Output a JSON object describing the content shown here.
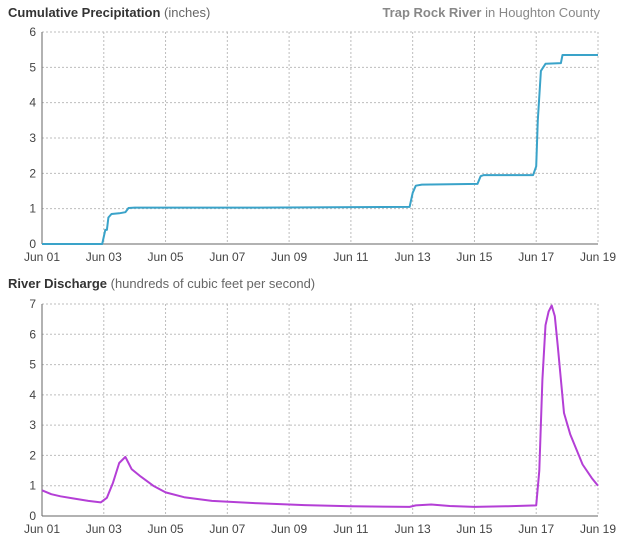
{
  "headers": {
    "top_title_bold": "Cumulative Precipitation",
    "top_title_unit": "(inches)",
    "location_bold": "Trap Rock River",
    "location_rest": "in Houghton County",
    "bottom_title_bold": "River Discharge",
    "bottom_title_unit": "(hundreds of cubic feet per second)"
  },
  "colors": {
    "precip": "#3aa3c9",
    "discharge": "#b43fd6"
  },
  "chart_data": [
    {
      "type": "line",
      "title": "Cumulative Precipitation (inches)",
      "xlabel": "",
      "ylabel": "",
      "x_ticks": [
        "Jun 01",
        "Jun 03",
        "Jun 05",
        "Jun 07",
        "Jun 09",
        "Jun 11",
        "Jun 13",
        "Jun 15",
        "Jun 17",
        "Jun 19"
      ],
      "y_ticks": [
        0,
        1,
        2,
        3,
        4,
        5,
        6
      ],
      "xlim": [
        1,
        19
      ],
      "ylim": [
        0,
        6
      ],
      "grid": true,
      "series": [
        {
          "color": "#3aa3c9",
          "x": [
            1.0,
            2.95,
            3.05,
            3.1,
            3.15,
            3.25,
            3.5,
            3.7,
            3.8,
            4.0,
            8.0,
            12.9,
            13.0,
            13.1,
            13.3,
            15.1,
            15.2,
            15.3,
            16.9,
            17.0,
            17.05,
            17.15,
            17.3,
            17.8,
            17.85,
            18.0,
            19.0
          ],
          "y": [
            0.0,
            0.0,
            0.4,
            0.4,
            0.75,
            0.85,
            0.87,
            0.9,
            1.02,
            1.03,
            1.03,
            1.05,
            1.45,
            1.65,
            1.68,
            1.7,
            1.92,
            1.95,
            1.95,
            2.2,
            3.5,
            4.9,
            5.1,
            5.12,
            5.35,
            5.35,
            5.35
          ]
        }
      ]
    },
    {
      "type": "line",
      "title": "River Discharge (hundreds of cubic feet per second)",
      "xlabel": "",
      "ylabel": "",
      "x_ticks": [
        "Jun 01",
        "Jun 03",
        "Jun 05",
        "Jun 07",
        "Jun 09",
        "Jun 11",
        "Jun 13",
        "Jun 15",
        "Jun 17",
        "Jun 19"
      ],
      "y_ticks": [
        0,
        1,
        2,
        3,
        4,
        5,
        6,
        7
      ],
      "xlim": [
        1,
        19
      ],
      "ylim": [
        0,
        7
      ],
      "grid": true,
      "series": [
        {
          "color": "#b43fd6",
          "x": [
            1.0,
            1.3,
            1.6,
            2.0,
            2.5,
            2.9,
            3.1,
            3.3,
            3.5,
            3.7,
            3.9,
            4.2,
            4.6,
            5.0,
            5.6,
            6.5,
            8.0,
            9.5,
            11.0,
            12.9,
            13.1,
            13.6,
            14.2,
            15.0,
            16.0,
            17.0,
            17.1,
            17.2,
            17.3,
            17.4,
            17.5,
            17.6,
            17.7,
            17.8,
            17.9,
            18.1,
            18.3,
            18.5,
            18.8,
            19.0
          ],
          "y": [
            0.85,
            0.72,
            0.65,
            0.58,
            0.5,
            0.45,
            0.6,
            1.1,
            1.75,
            1.95,
            1.55,
            1.3,
            1.0,
            0.78,
            0.62,
            0.5,
            0.42,
            0.36,
            0.32,
            0.3,
            0.35,
            0.38,
            0.33,
            0.3,
            0.32,
            0.35,
            1.5,
            4.5,
            6.3,
            6.75,
            6.95,
            6.6,
            5.6,
            4.5,
            3.4,
            2.7,
            2.2,
            1.7,
            1.25,
            1.0
          ]
        }
      ]
    }
  ]
}
